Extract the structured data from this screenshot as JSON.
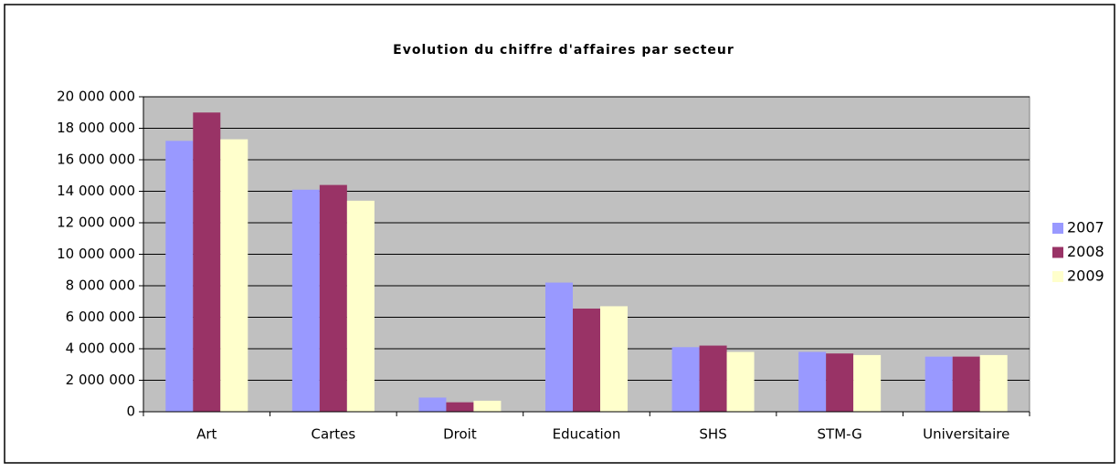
{
  "chart_data": {
    "type": "bar",
    "title": "Evolution du chiffre d'affaires par secteur",
    "categories": [
      "Art",
      "Cartes",
      "Droit",
      "Education",
      "SHS",
      "STM-G",
      "Universitaire"
    ],
    "series": [
      {
        "name": "2007",
        "color": "#9999ff",
        "values": [
          17200000,
          14100000,
          900000,
          8200000,
          4100000,
          3800000,
          3500000
        ]
      },
      {
        "name": "2008",
        "color": "#993366",
        "values": [
          19000000,
          14400000,
          600000,
          6550000,
          4200000,
          3700000,
          3500000
        ]
      },
      {
        "name": "2009",
        "color": "#ffffcc",
        "values": [
          17300000,
          13400000,
          700000,
          6700000,
          3800000,
          3600000,
          3600000
        ]
      }
    ],
    "ylim": [
      0,
      20000000
    ],
    "yticks": [
      0,
      {
        "value": 2000000,
        "label": "2 000 000"
      },
      {
        "value": 4000000,
        "label": "4 000 000"
      },
      {
        "value": 6000000,
        "label": "6 000 000"
      },
      {
        "value": 8000000,
        "label": "8 000 000"
      },
      {
        "value": 10000000,
        "label": "10 000 000"
      },
      {
        "value": 12000000,
        "label": "12 000 000"
      },
      {
        "value": 14000000,
        "label": "14 000 000"
      },
      {
        "value": 16000000,
        "label": "16 000 000"
      },
      {
        "value": 18000000,
        "label": "18 000 000"
      },
      {
        "value": 20000000,
        "label": "20 000 000"
      }
    ],
    "grid": true,
    "legend": "right"
  }
}
